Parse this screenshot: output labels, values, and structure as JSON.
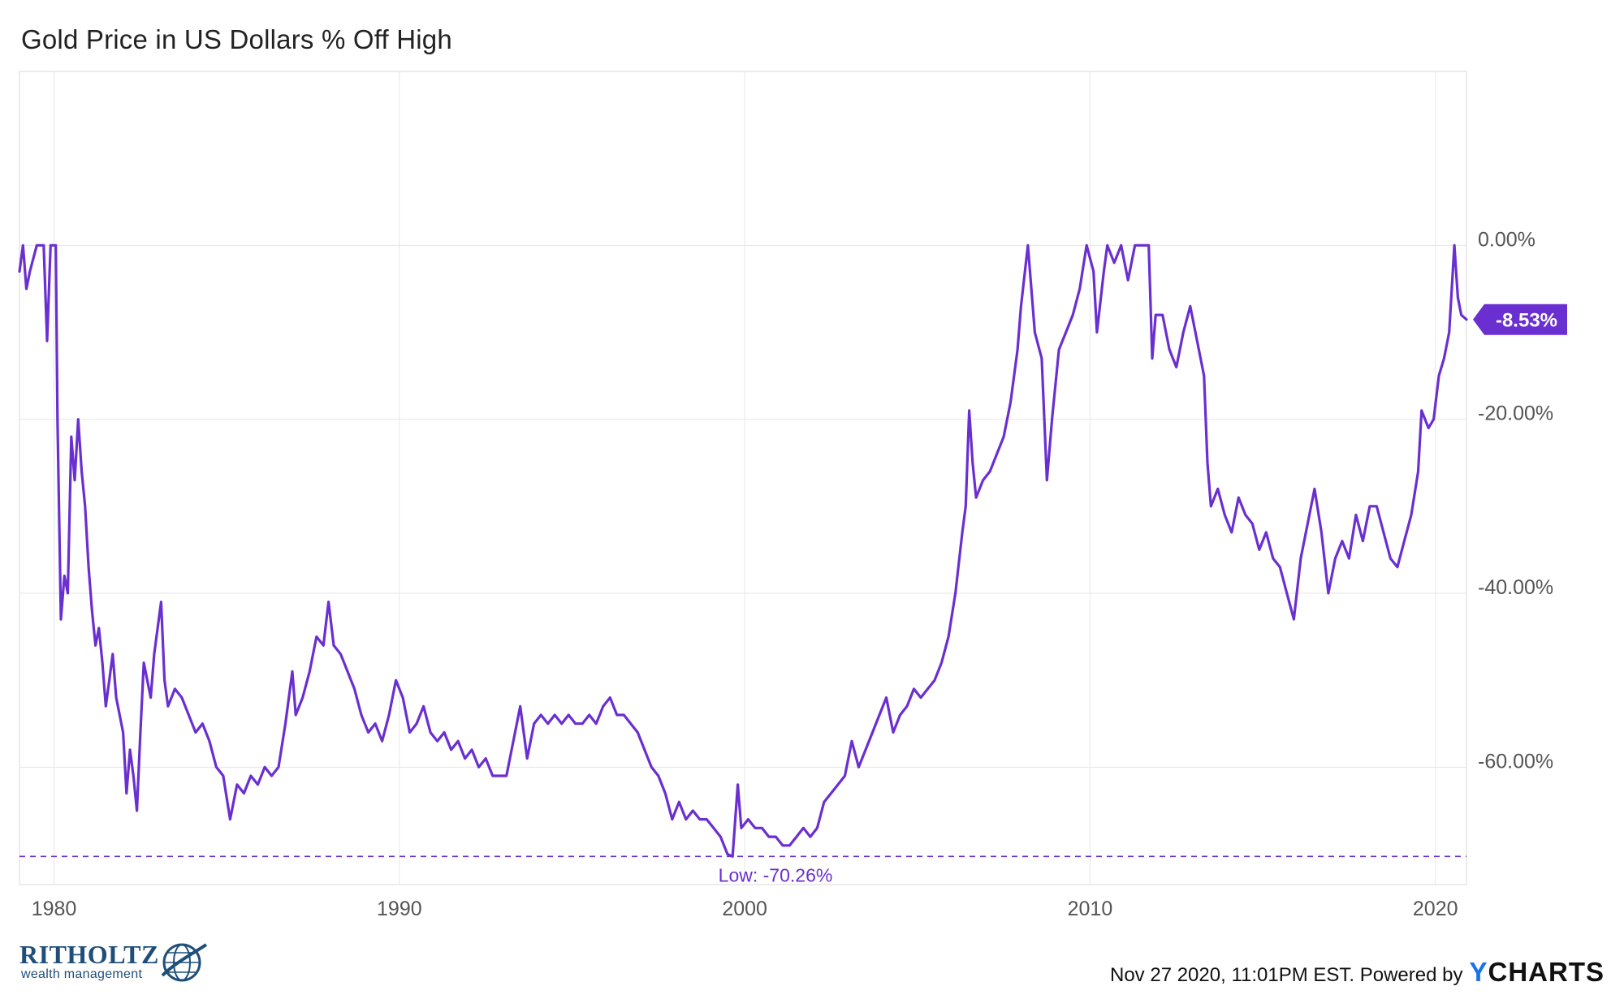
{
  "chart_data": {
    "type": "line",
    "title": "Gold Price in US Dollars % Off High",
    "xlim": [
      1979.0,
      2020.9
    ],
    "ylim": [
      -73.5,
      20
    ],
    "x_ticks": [
      1980,
      1990,
      2000,
      2010,
      2020
    ],
    "y_ticks": [
      0,
      -20,
      -40,
      -60
    ],
    "y_tick_labels": [
      "0.00%",
      "-20.00%",
      "-40.00%",
      "-60.00%"
    ],
    "grid": true,
    "series": [
      {
        "color": "#6a2fd0",
        "points": [
          [
            1979.0,
            -3
          ],
          [
            1979.1,
            0
          ],
          [
            1979.2,
            -5
          ],
          [
            1979.3,
            -3
          ],
          [
            1979.5,
            0
          ],
          [
            1979.7,
            0
          ],
          [
            1979.8,
            -11
          ],
          [
            1979.9,
            0
          ],
          [
            1980.05,
            0
          ],
          [
            1980.1,
            -20
          ],
          [
            1980.2,
            -43
          ],
          [
            1980.3,
            -38
          ],
          [
            1980.4,
            -40
          ],
          [
            1980.5,
            -22
          ],
          [
            1980.6,
            -27
          ],
          [
            1980.7,
            -20
          ],
          [
            1980.8,
            -26
          ],
          [
            1980.9,
            -30
          ],
          [
            1981.0,
            -37
          ],
          [
            1981.1,
            -42
          ],
          [
            1981.2,
            -46
          ],
          [
            1981.3,
            -44
          ],
          [
            1981.4,
            -48
          ],
          [
            1981.5,
            -53
          ],
          [
            1981.6,
            -50
          ],
          [
            1981.7,
            -47
          ],
          [
            1981.8,
            -52
          ],
          [
            1982.0,
            -56
          ],
          [
            1982.1,
            -63
          ],
          [
            1982.2,
            -58
          ],
          [
            1982.3,
            -61
          ],
          [
            1982.4,
            -65
          ],
          [
            1982.5,
            -56
          ],
          [
            1982.6,
            -48
          ],
          [
            1982.8,
            -52
          ],
          [
            1982.9,
            -47
          ],
          [
            1983.1,
            -41
          ],
          [
            1983.2,
            -50
          ],
          [
            1983.3,
            -53
          ],
          [
            1983.5,
            -51
          ],
          [
            1983.7,
            -52
          ],
          [
            1983.9,
            -54
          ],
          [
            1984.1,
            -56
          ],
          [
            1984.3,
            -55
          ],
          [
            1984.5,
            -57
          ],
          [
            1984.7,
            -60
          ],
          [
            1984.9,
            -61
          ],
          [
            1985.1,
            -66
          ],
          [
            1985.3,
            -62
          ],
          [
            1985.5,
            -63
          ],
          [
            1985.7,
            -61
          ],
          [
            1985.9,
            -62
          ],
          [
            1986.1,
            -60
          ],
          [
            1986.3,
            -61
          ],
          [
            1986.5,
            -60
          ],
          [
            1986.7,
            -55
          ],
          [
            1986.9,
            -49
          ],
          [
            1987.0,
            -54
          ],
          [
            1987.2,
            -52
          ],
          [
            1987.4,
            -49
          ],
          [
            1987.5,
            -47
          ],
          [
            1987.6,
            -45
          ],
          [
            1987.8,
            -46
          ],
          [
            1987.95,
            -41
          ],
          [
            1988.1,
            -46
          ],
          [
            1988.3,
            -47
          ],
          [
            1988.5,
            -49
          ],
          [
            1988.7,
            -51
          ],
          [
            1988.9,
            -54
          ],
          [
            1989.1,
            -56
          ],
          [
            1989.3,
            -55
          ],
          [
            1989.5,
            -57
          ],
          [
            1989.7,
            -54
          ],
          [
            1989.9,
            -50
          ],
          [
            1990.1,
            -52
          ],
          [
            1990.3,
            -56
          ],
          [
            1990.5,
            -55
          ],
          [
            1990.7,
            -53
          ],
          [
            1990.9,
            -56
          ],
          [
            1991.1,
            -57
          ],
          [
            1991.3,
            -56
          ],
          [
            1991.5,
            -58
          ],
          [
            1991.7,
            -57
          ],
          [
            1991.9,
            -59
          ],
          [
            1992.1,
            -58
          ],
          [
            1992.3,
            -60
          ],
          [
            1992.5,
            -59
          ],
          [
            1992.7,
            -61
          ],
          [
            1992.9,
            -61
          ],
          [
            1993.1,
            -61
          ],
          [
            1993.3,
            -57
          ],
          [
            1993.5,
            -53
          ],
          [
            1993.7,
            -59
          ],
          [
            1993.9,
            -55
          ],
          [
            1994.1,
            -54
          ],
          [
            1994.3,
            -55
          ],
          [
            1994.5,
            -54
          ],
          [
            1994.7,
            -55
          ],
          [
            1994.9,
            -54
          ],
          [
            1995.1,
            -55
          ],
          [
            1995.3,
            -55
          ],
          [
            1995.5,
            -54
          ],
          [
            1995.7,
            -55
          ],
          [
            1995.9,
            -53
          ],
          [
            1996.1,
            -52
          ],
          [
            1996.3,
            -54
          ],
          [
            1996.5,
            -54
          ],
          [
            1996.7,
            -55
          ],
          [
            1996.9,
            -56
          ],
          [
            1997.1,
            -58
          ],
          [
            1997.3,
            -60
          ],
          [
            1997.5,
            -61
          ],
          [
            1997.7,
            -63
          ],
          [
            1997.9,
            -66
          ],
          [
            1998.1,
            -64
          ],
          [
            1998.3,
            -66
          ],
          [
            1998.5,
            -65
          ],
          [
            1998.7,
            -66
          ],
          [
            1998.9,
            -66
          ],
          [
            1999.1,
            -67
          ],
          [
            1999.3,
            -68
          ],
          [
            1999.5,
            -70
          ],
          [
            1999.65,
            -70.26
          ],
          [
            1999.8,
            -62
          ],
          [
            1999.9,
            -67
          ],
          [
            2000.1,
            -66
          ],
          [
            2000.3,
            -67
          ],
          [
            2000.5,
            -67
          ],
          [
            2000.7,
            -68
          ],
          [
            2000.9,
            -68
          ],
          [
            2001.1,
            -69
          ],
          [
            2001.3,
            -69
          ],
          [
            2001.5,
            -68
          ],
          [
            2001.7,
            -67
          ],
          [
            2001.9,
            -68
          ],
          [
            2002.1,
            -67
          ],
          [
            2002.3,
            -64
          ],
          [
            2002.5,
            -63
          ],
          [
            2002.7,
            -62
          ],
          [
            2002.9,
            -61
          ],
          [
            2003.1,
            -57
          ],
          [
            2003.3,
            -60
          ],
          [
            2003.5,
            -58
          ],
          [
            2003.7,
            -56
          ],
          [
            2003.9,
            -54
          ],
          [
            2004.1,
            -52
          ],
          [
            2004.3,
            -56
          ],
          [
            2004.5,
            -54
          ],
          [
            2004.7,
            -53
          ],
          [
            2004.9,
            -51
          ],
          [
            2005.1,
            -52
          ],
          [
            2005.3,
            -51
          ],
          [
            2005.5,
            -50
          ],
          [
            2005.7,
            -48
          ],
          [
            2005.9,
            -45
          ],
          [
            2006.1,
            -40
          ],
          [
            2006.3,
            -33
          ],
          [
            2006.4,
            -30
          ],
          [
            2006.5,
            -19
          ],
          [
            2006.6,
            -25
          ],
          [
            2006.7,
            -29
          ],
          [
            2006.9,
            -27
          ],
          [
            2007.1,
            -26
          ],
          [
            2007.3,
            -24
          ],
          [
            2007.5,
            -22
          ],
          [
            2007.7,
            -18
          ],
          [
            2007.9,
            -12
          ],
          [
            2008.0,
            -7
          ],
          [
            2008.2,
            0
          ],
          [
            2008.4,
            -10
          ],
          [
            2008.6,
            -13
          ],
          [
            2008.75,
            -27
          ],
          [
            2008.9,
            -20
          ],
          [
            2009.1,
            -12
          ],
          [
            2009.3,
            -10
          ],
          [
            2009.5,
            -8
          ],
          [
            2009.7,
            -5
          ],
          [
            2009.9,
            0
          ],
          [
            2010.1,
            -3
          ],
          [
            2010.2,
            -10
          ],
          [
            2010.4,
            -3
          ],
          [
            2010.5,
            0
          ],
          [
            2010.7,
            -2
          ],
          [
            2010.9,
            0
          ],
          [
            2011.1,
            -4
          ],
          [
            2011.3,
            0
          ],
          [
            2011.5,
            0
          ],
          [
            2011.7,
            0
          ],
          [
            2011.8,
            -13
          ],
          [
            2011.9,
            -8
          ],
          [
            2012.1,
            -8
          ],
          [
            2012.3,
            -12
          ],
          [
            2012.5,
            -14
          ],
          [
            2012.7,
            -10
          ],
          [
            2012.9,
            -7
          ],
          [
            2013.1,
            -11
          ],
          [
            2013.3,
            -15
          ],
          [
            2013.4,
            -25
          ],
          [
            2013.5,
            -30
          ],
          [
            2013.7,
            -28
          ],
          [
            2013.9,
            -31
          ],
          [
            2014.1,
            -33
          ],
          [
            2014.3,
            -29
          ],
          [
            2014.5,
            -31
          ],
          [
            2014.7,
            -32
          ],
          [
            2014.9,
            -35
          ],
          [
            2015.1,
            -33
          ],
          [
            2015.3,
            -36
          ],
          [
            2015.5,
            -37
          ],
          [
            2015.7,
            -40
          ],
          [
            2015.9,
            -43
          ],
          [
            2016.1,
            -36
          ],
          [
            2016.3,
            -32
          ],
          [
            2016.5,
            -28
          ],
          [
            2016.7,
            -33
          ],
          [
            2016.9,
            -40
          ],
          [
            2017.1,
            -36
          ],
          [
            2017.3,
            -34
          ],
          [
            2017.5,
            -36
          ],
          [
            2017.7,
            -31
          ],
          [
            2017.9,
            -34
          ],
          [
            2018.1,
            -30
          ],
          [
            2018.3,
            -30
          ],
          [
            2018.5,
            -33
          ],
          [
            2018.7,
            -36
          ],
          [
            2018.9,
            -37
          ],
          [
            2019.1,
            -34
          ],
          [
            2019.3,
            -31
          ],
          [
            2019.5,
            -26
          ],
          [
            2019.6,
            -19
          ],
          [
            2019.8,
            -21
          ],
          [
            2019.95,
            -20
          ],
          [
            2020.1,
            -15
          ],
          [
            2020.25,
            -13
          ],
          [
            2020.4,
            -10
          ],
          [
            2020.55,
            0
          ],
          [
            2020.65,
            -6
          ],
          [
            2020.75,
            -8
          ],
          [
            2020.9,
            -8.53
          ]
        ]
      }
    ],
    "annotations": {
      "low_value": -70.26,
      "low_label": "Low: -70.26%",
      "last_value": -8.53,
      "last_label": "-8.53%"
    }
  },
  "footer": {
    "timestamp": "Nov 27 2020, 11:01PM EST. Powered by",
    "brand_first": "Y",
    "brand_rest": "CHARTS"
  },
  "logo": {
    "name": "RITHOLTZ",
    "tagline": "wealth management"
  },
  "colors": {
    "line": "#6a2fd0",
    "grid": "#e6e6e6",
    "axis_text": "#555555",
    "footer_brand": "#1a73e8",
    "logo": "#1f4e79"
  }
}
